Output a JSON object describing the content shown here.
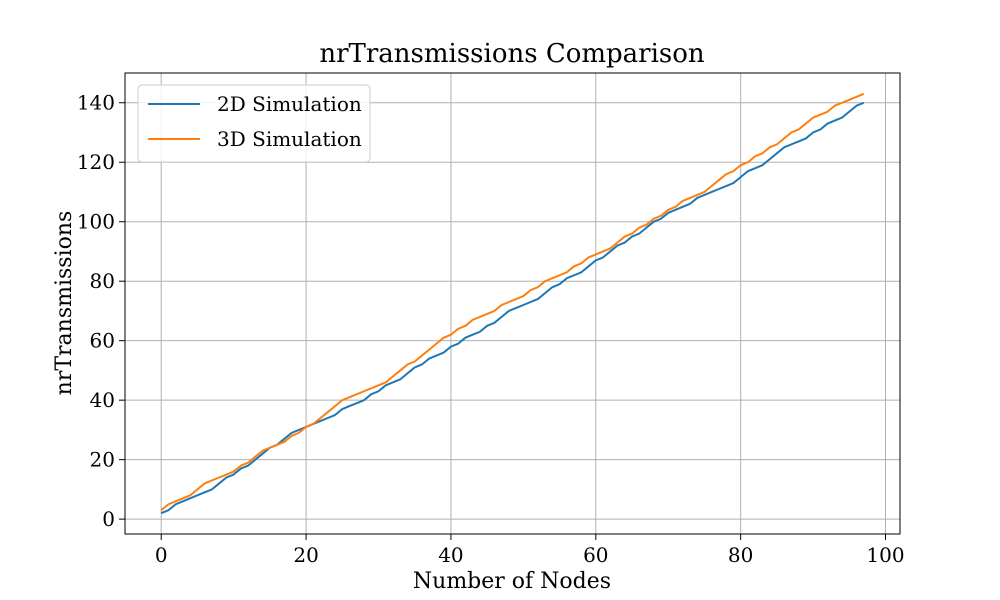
{
  "chart_data": {
    "type": "line",
    "title": "nrTransmissions Comparison",
    "xlabel": "Number of Nodes",
    "ylabel": "nrTransmissions",
    "xlim": [
      -5,
      102
    ],
    "ylim": [
      -5,
      150
    ],
    "xticks": [
      0,
      20,
      40,
      60,
      80,
      100
    ],
    "yticks": [
      0,
      20,
      40,
      60,
      80,
      100,
      120,
      140
    ],
    "grid": true,
    "legend_position": "top-left",
    "series": [
      {
        "name": "2D Simulation",
        "color": "#1f77b4",
        "x": [
          0,
          1,
          2,
          3,
          4,
          5,
          6,
          7,
          8,
          9,
          10,
          11,
          12,
          13,
          14,
          15,
          16,
          17,
          18,
          19,
          20,
          21,
          22,
          23,
          24,
          25,
          26,
          27,
          28,
          29,
          30,
          31,
          32,
          33,
          34,
          35,
          36,
          37,
          38,
          39,
          40,
          41,
          42,
          43,
          44,
          45,
          46,
          47,
          48,
          49,
          50,
          51,
          52,
          53,
          54,
          55,
          56,
          57,
          58,
          59,
          60,
          61,
          62,
          63,
          64,
          65,
          66,
          67,
          68,
          69,
          70,
          71,
          72,
          73,
          74,
          75,
          76,
          77,
          78,
          79,
          80,
          81,
          82,
          83,
          84,
          85,
          86,
          87,
          88,
          89,
          90,
          91,
          92,
          93,
          94,
          95,
          96,
          97
        ],
        "y": [
          2,
          3,
          5,
          6,
          7,
          8,
          9,
          10,
          12,
          14,
          15,
          17,
          18,
          20,
          22,
          24,
          25,
          27,
          29,
          30,
          31,
          32,
          33,
          34,
          35,
          37,
          38,
          39,
          40,
          42,
          43,
          45,
          46,
          47,
          49,
          51,
          52,
          54,
          55,
          56,
          58,
          59,
          61,
          62,
          63,
          65,
          66,
          68,
          70,
          71,
          72,
          73,
          74,
          76,
          78,
          79,
          81,
          82,
          83,
          85,
          87,
          88,
          90,
          92,
          93,
          95,
          96,
          98,
          100,
          101,
          103,
          104,
          105,
          106,
          108,
          109,
          110,
          111,
          112,
          113,
          115,
          117,
          118,
          119,
          121,
          123,
          125,
          126,
          127,
          128,
          130,
          131,
          133,
          134,
          135,
          137,
          139,
          140
        ]
      },
      {
        "name": "3D Simulation",
        "color": "#ff7f0e",
        "x": [
          0,
          1,
          2,
          3,
          4,
          5,
          6,
          7,
          8,
          9,
          10,
          11,
          12,
          13,
          14,
          15,
          16,
          17,
          18,
          19,
          20,
          21,
          22,
          23,
          24,
          25,
          26,
          27,
          28,
          29,
          30,
          31,
          32,
          33,
          34,
          35,
          36,
          37,
          38,
          39,
          40,
          41,
          42,
          43,
          44,
          45,
          46,
          47,
          48,
          49,
          50,
          51,
          52,
          53,
          54,
          55,
          56,
          57,
          58,
          59,
          60,
          61,
          62,
          63,
          64,
          65,
          66,
          67,
          68,
          69,
          70,
          71,
          72,
          73,
          74,
          75,
          76,
          77,
          78,
          79,
          80,
          81,
          82,
          83,
          84,
          85,
          86,
          87,
          88,
          89,
          90,
          91,
          92,
          93,
          94,
          95,
          96,
          97
        ],
        "y": [
          3,
          5,
          6,
          7,
          8,
          10,
          12,
          13,
          14,
          15,
          16,
          18,
          19,
          21,
          23,
          24,
          25,
          26,
          28,
          29,
          31,
          32,
          34,
          36,
          38,
          40,
          41,
          42,
          43,
          44,
          45,
          46,
          48,
          50,
          52,
          53,
          55,
          57,
          59,
          61,
          62,
          64,
          65,
          67,
          68,
          69,
          70,
          72,
          73,
          74,
          75,
          77,
          78,
          80,
          81,
          82,
          83,
          85,
          86,
          88,
          89,
          90,
          91,
          93,
          95,
          96,
          98,
          99,
          101,
          102,
          104,
          105,
          107,
          108,
          109,
          110,
          112,
          114,
          116,
          117,
          119,
          120,
          122,
          123,
          125,
          126,
          128,
          130,
          131,
          133,
          135,
          136,
          137,
          139,
          140,
          141,
          142,
          143
        ]
      }
    ]
  }
}
